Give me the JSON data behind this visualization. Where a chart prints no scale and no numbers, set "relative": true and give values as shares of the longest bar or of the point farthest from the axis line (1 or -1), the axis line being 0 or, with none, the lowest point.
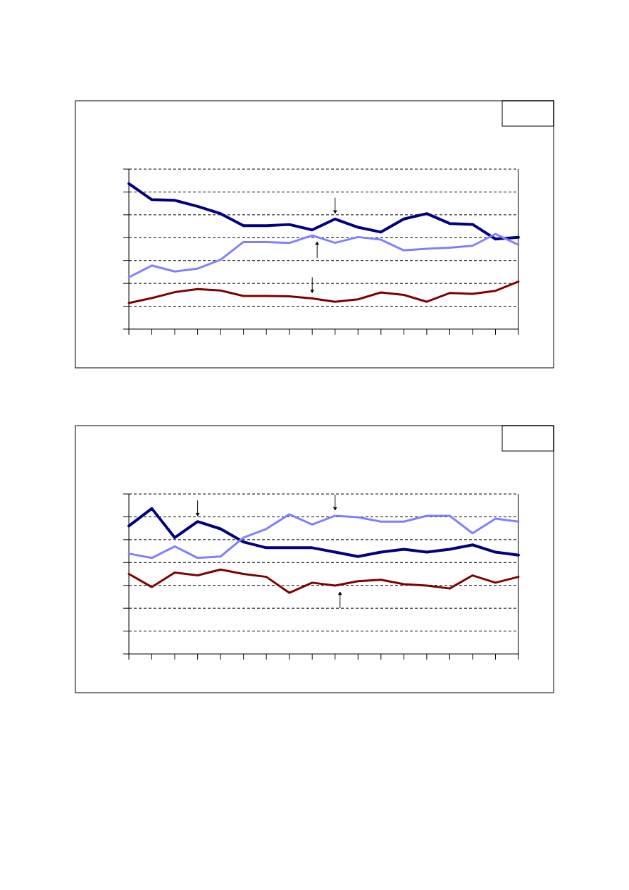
{
  "chart_data": [
    {
      "type": "line",
      "relative": true,
      "grid": "y",
      "line_style": "solid",
      "categories": [
        null,
        null,
        null,
        null,
        null,
        null,
        null,
        null,
        null,
        null,
        null,
        null,
        null,
        null,
        null,
        null,
        null,
        null
      ],
      "series": [
        {
          "color": "#000080",
          "values": [
            1,
            0.89,
            0.885,
            0.844,
            0.794,
            0.711,
            0.711,
            0.719,
            0.682,
            0.757,
            0.7,
            0.667,
            0.757,
            0.794,
            0.726,
            0.72,
            0.619,
            0.631
          ]
        },
        {
          "color": "#8080ff",
          "values": [
            0.356,
            0.437,
            0.396,
            0.416,
            0.477,
            0.599,
            0.599,
            0.592,
            0.644,
            0.593,
            0.633,
            0.615,
            0.541,
            0.552,
            0.56,
            0.573,
            0.654,
            0.58
          ]
        },
        {
          "color": "#800000",
          "values": [
            0.179,
            0.213,
            0.254,
            0.275,
            0.265,
            0.228,
            0.228,
            0.225,
            0.211,
            0.188,
            0.205,
            0.252,
            0.235,
            0.188,
            0.248,
            0.242,
            0.263,
            0.327
          ]
        }
      ]
    },
    {
      "type": "line",
      "relative": true,
      "grid": "y",
      "line_style": "solid",
      "categories": [
        null,
        null,
        null,
        null,
        null,
        null,
        null,
        null,
        null,
        null,
        null,
        null,
        null,
        null,
        null,
        null,
        null,
        null
      ],
      "series": [
        {
          "color": "#000080",
          "values": [
            0.88,
            1,
            0.8,
            0.91,
            0.86,
            0.77,
            0.73,
            0.73,
            0.73,
            0.7,
            0.67,
            0.7,
            0.72,
            0.7,
            0.72,
            0.75,
            0.7,
            0.68
          ]
        },
        {
          "color": "#8080ff",
          "values": [
            0.69,
            0.66,
            0.74,
            0.66,
            0.67,
            0.8,
            0.86,
            0.96,
            0.89,
            0.95,
            0.94,
            0.91,
            0.91,
            0.95,
            0.95,
            0.83,
            0.93,
            0.91
          ]
        },
        {
          "color": "#800000",
          "values": [
            0.55,
            0.46,
            0.56,
            0.54,
            0.58,
            0.55,
            0.53,
            0.42,
            0.49,
            0.47,
            0.5,
            0.51,
            0.48,
            0.47,
            0.45,
            0.54,
            0.49,
            0.53
          ]
        }
      ]
    }
  ]
}
